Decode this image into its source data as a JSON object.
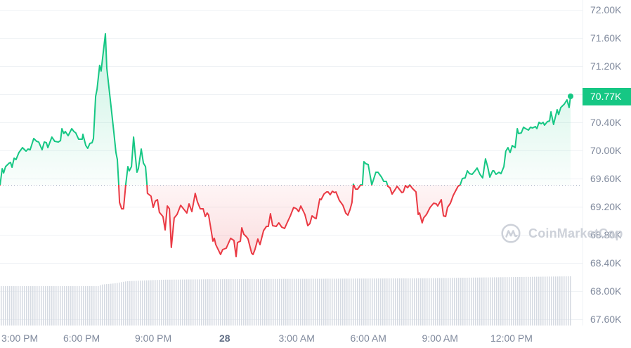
{
  "chart_data": {
    "type": "line",
    "title": "",
    "xlabel": "",
    "ylabel": "",
    "x_unit": "hours since 3:00 PM",
    "y_unit": "K",
    "ylim": [
      67.6,
      72.0
    ],
    "grid": {
      "min": 67.6,
      "max": 72.0,
      "step": 0.4
    },
    "baseline": {
      "value": 69.51,
      "style": "dotted"
    },
    "current_price": {
      "value": 70.77,
      "label": "70.77K"
    },
    "colors": {
      "up": "#16c784",
      "down": "#ea3943",
      "grid": "#eff2f5",
      "baseline": "#a6b0c3",
      "volume": "#d5dae2",
      "axis_text": "#808a9d"
    },
    "x_ticks": [
      {
        "t": 0,
        "label": "3:00 PM"
      },
      {
        "t": 3,
        "label": "6:00 PM"
      },
      {
        "t": 6,
        "label": "9:00 PM"
      },
      {
        "t": 9,
        "label": "28",
        "emphasis": true
      },
      {
        "t": 12,
        "label": "3:00 AM"
      },
      {
        "t": 15,
        "label": "6:00 AM"
      },
      {
        "t": 18,
        "label": "9:00 AM"
      },
      {
        "t": 21,
        "label": "12:00 PM"
      }
    ],
    "y_ticks": [
      {
        "value": 72.0,
        "label": "72.00K"
      },
      {
        "value": 71.6,
        "label": "71.60K"
      },
      {
        "value": 71.2,
        "label": "71.20K"
      },
      {
        "value": 70.4,
        "label": "70.40K"
      },
      {
        "value": 70.0,
        "label": "70.00K"
      },
      {
        "value": 69.6,
        "label": "69.60K"
      },
      {
        "value": 69.2,
        "label": "69.20K"
      },
      {
        "value": 68.8,
        "label": "68.80K"
      },
      {
        "value": 68.4,
        "label": "68.40K"
      },
      {
        "value": 68.0,
        "label": "68.00K"
      },
      {
        "value": 67.6,
        "label": "67.60K"
      }
    ],
    "legend": null,
    "series": [
      {
        "name": "Price",
        "points": [
          [
            -0.41,
            69.51
          ],
          [
            -0.32,
            69.74
          ],
          [
            -0.26,
            69.68
          ],
          [
            -0.18,
            69.77
          ],
          [
            -0.03,
            69.82
          ],
          [
            0.03,
            69.83
          ],
          [
            0.09,
            69.76
          ],
          [
            0.18,
            69.89
          ],
          [
            0.26,
            69.87
          ],
          [
            0.38,
            69.97
          ],
          [
            0.53,
            70.04
          ],
          [
            0.68,
            69.99
          ],
          [
            0.76,
            70.02
          ],
          [
            0.85,
            70.01
          ],
          [
            1.0,
            70.17
          ],
          [
            1.12,
            70.13
          ],
          [
            1.21,
            70.12
          ],
          [
            1.35,
            70.01
          ],
          [
            1.44,
            70.12
          ],
          [
            1.53,
            70.11
          ],
          [
            1.59,
            70.04
          ],
          [
            1.76,
            70.19
          ],
          [
            1.88,
            70.13
          ],
          [
            2.03,
            70.12
          ],
          [
            2.12,
            70.14
          ],
          [
            2.18,
            70.31
          ],
          [
            2.26,
            70.24
          ],
          [
            2.32,
            70.27
          ],
          [
            2.44,
            70.21
          ],
          [
            2.59,
            70.31
          ],
          [
            2.68,
            70.27
          ],
          [
            2.76,
            70.25
          ],
          [
            2.88,
            70.16
          ],
          [
            2.97,
            70.16
          ],
          [
            3.03,
            70.16
          ],
          [
            3.06,
            70.23
          ],
          [
            3.18,
            70.07
          ],
          [
            3.26,
            70.03
          ],
          [
            3.35,
            70.1
          ],
          [
            3.44,
            70.11
          ],
          [
            3.5,
            70.17
          ],
          [
            3.59,
            70.77
          ],
          [
            3.65,
            70.87
          ],
          [
            3.76,
            71.21
          ],
          [
            3.82,
            71.13
          ],
          [
            4.0,
            71.66
          ],
          [
            4.06,
            71.17
          ],
          [
            4.21,
            70.71
          ],
          [
            4.35,
            70.27
          ],
          [
            4.44,
            69.97
          ],
          [
            4.5,
            69.87
          ],
          [
            4.56,
            69.51
          ],
          [
            4.59,
            69.26
          ],
          [
            4.68,
            69.17
          ],
          [
            4.76,
            69.17
          ],
          [
            4.85,
            69.51
          ],
          [
            4.94,
            69.77
          ],
          [
            5.0,
            69.71
          ],
          [
            5.09,
            69.77
          ],
          [
            5.18,
            70.19
          ],
          [
            5.32,
            69.69
          ],
          [
            5.38,
            69.74
          ],
          [
            5.5,
            70.02
          ],
          [
            5.59,
            69.82
          ],
          [
            5.68,
            69.77
          ],
          [
            5.74,
            69.51
          ],
          [
            5.76,
            69.39
          ],
          [
            5.91,
            69.35
          ],
          [
            6.0,
            69.19
          ],
          [
            6.09,
            69.28
          ],
          [
            6.18,
            69.3
          ],
          [
            6.26,
            69.12
          ],
          [
            6.41,
            69.06
          ],
          [
            6.5,
            68.87
          ],
          [
            6.59,
            69.21
          ],
          [
            6.68,
            69.17
          ],
          [
            6.76,
            68.62
          ],
          [
            6.88,
            69.04
          ],
          [
            7.0,
            69.09
          ],
          [
            7.15,
            69.22
          ],
          [
            7.29,
            69.16
          ],
          [
            7.41,
            69.11
          ],
          [
            7.5,
            69.24
          ],
          [
            7.62,
            69.13
          ],
          [
            7.76,
            69.39
          ],
          [
            7.85,
            69.27
          ],
          [
            7.97,
            69.17
          ],
          [
            8.09,
            69.17
          ],
          [
            8.18,
            69.06
          ],
          [
            8.26,
            69.11
          ],
          [
            8.32,
            69.08
          ],
          [
            8.5,
            68.71
          ],
          [
            8.56,
            68.75
          ],
          [
            8.62,
            68.66
          ],
          [
            8.82,
            68.52
          ],
          [
            8.91,
            68.59
          ],
          [
            9.06,
            68.61
          ],
          [
            9.24,
            68.75
          ],
          [
            9.38,
            68.72
          ],
          [
            9.47,
            68.49
          ],
          [
            9.53,
            68.69
          ],
          [
            9.65,
            68.71
          ],
          [
            9.71,
            68.9
          ],
          [
            9.79,
            68.81
          ],
          [
            9.91,
            68.77
          ],
          [
            9.97,
            68.74
          ],
          [
            10.12,
            68.54
          ],
          [
            10.18,
            68.52
          ],
          [
            10.26,
            68.59
          ],
          [
            10.38,
            68.74
          ],
          [
            10.47,
            68.66
          ],
          [
            10.62,
            68.86
          ],
          [
            10.74,
            68.92
          ],
          [
            10.82,
            68.92
          ],
          [
            10.91,
            69.1
          ],
          [
            11.0,
            68.93
          ],
          [
            11.15,
            68.92
          ],
          [
            11.26,
            68.97
          ],
          [
            11.38,
            68.91
          ],
          [
            11.5,
            68.89
          ],
          [
            11.59,
            68.96
          ],
          [
            11.74,
            69.07
          ],
          [
            11.88,
            69.19
          ],
          [
            12.0,
            69.17
          ],
          [
            12.09,
            69.13
          ],
          [
            12.18,
            69.21
          ],
          [
            12.35,
            69.09
          ],
          [
            12.47,
            68.93
          ],
          [
            12.56,
            68.96
          ],
          [
            12.65,
            69.07
          ],
          [
            12.76,
            69.04
          ],
          [
            12.82,
            69.03
          ],
          [
            12.97,
            69.31
          ],
          [
            13.03,
            69.3
          ],
          [
            13.15,
            69.38
          ],
          [
            13.26,
            69.41
          ],
          [
            13.32,
            69.41
          ],
          [
            13.41,
            69.37
          ],
          [
            13.5,
            69.42
          ],
          [
            13.59,
            69.4
          ],
          [
            13.65,
            69.41
          ],
          [
            13.79,
            69.29
          ],
          [
            13.94,
            69.22
          ],
          [
            14.06,
            69.11
          ],
          [
            14.15,
            69.08
          ],
          [
            14.24,
            69.16
          ],
          [
            14.32,
            69.26
          ],
          [
            14.38,
            69.52
          ],
          [
            14.47,
            69.45
          ],
          [
            14.56,
            69.45
          ],
          [
            14.68,
            69.51
          ],
          [
            14.76,
            69.51
          ],
          [
            14.82,
            69.84
          ],
          [
            14.91,
            69.81
          ],
          [
            15.0,
            69.8
          ],
          [
            15.15,
            69.51
          ],
          [
            15.32,
            69.69
          ],
          [
            15.41,
            69.69
          ],
          [
            15.56,
            69.62
          ],
          [
            15.65,
            69.56
          ],
          [
            15.76,
            69.56
          ],
          [
            15.82,
            69.49
          ],
          [
            15.91,
            69.47
          ],
          [
            16.0,
            69.38
          ],
          [
            16.12,
            69.44
          ],
          [
            16.21,
            69.49
          ],
          [
            16.32,
            69.44
          ],
          [
            16.41,
            69.4
          ],
          [
            16.47,
            69.41
          ],
          [
            16.56,
            69.5
          ],
          [
            16.65,
            69.47
          ],
          [
            16.74,
            69.51
          ],
          [
            16.85,
            69.46
          ],
          [
            17.0,
            69.41
          ],
          [
            17.09,
            69.09
          ],
          [
            17.15,
            69.11
          ],
          [
            17.26,
            68.97
          ],
          [
            17.32,
            69.04
          ],
          [
            17.44,
            69.09
          ],
          [
            17.59,
            69.19
          ],
          [
            17.74,
            69.25
          ],
          [
            17.85,
            69.24
          ],
          [
            17.91,
            69.21
          ],
          [
            18.06,
            69.3
          ],
          [
            18.15,
            69.07
          ],
          [
            18.24,
            69.06
          ],
          [
            18.32,
            69.19
          ],
          [
            18.44,
            69.25
          ],
          [
            18.56,
            69.36
          ],
          [
            18.76,
            69.49
          ],
          [
            18.85,
            69.51
          ],
          [
            18.94,
            69.6
          ],
          [
            19.06,
            69.61
          ],
          [
            19.15,
            69.71
          ],
          [
            19.24,
            69.67
          ],
          [
            19.35,
            69.66
          ],
          [
            19.47,
            69.71
          ],
          [
            19.56,
            69.75
          ],
          [
            19.68,
            69.66
          ],
          [
            19.79,
            69.61
          ],
          [
            19.91,
            69.88
          ],
          [
            20.0,
            69.77
          ],
          [
            20.09,
            69.62
          ],
          [
            20.21,
            69.71
          ],
          [
            20.26,
            69.71
          ],
          [
            20.35,
            69.66
          ],
          [
            20.47,
            69.69
          ],
          [
            20.56,
            69.67
          ],
          [
            20.68,
            69.77
          ],
          [
            20.76,
            69.99
          ],
          [
            20.85,
            70.04
          ],
          [
            20.94,
            69.97
          ],
          [
            21.03,
            70.07
          ],
          [
            21.15,
            70.04
          ],
          [
            21.24,
            70.31
          ],
          [
            21.29,
            70.24
          ],
          [
            21.41,
            70.25
          ],
          [
            21.5,
            70.33
          ],
          [
            21.59,
            70.31
          ],
          [
            21.71,
            70.29
          ],
          [
            21.79,
            70.33
          ],
          [
            21.88,
            70.32
          ],
          [
            22.0,
            70.34
          ],
          [
            22.06,
            70.31
          ],
          [
            22.15,
            70.4
          ],
          [
            22.24,
            70.38
          ],
          [
            22.32,
            70.4
          ],
          [
            22.38,
            70.36
          ],
          [
            22.5,
            70.41
          ],
          [
            22.59,
            70.42
          ],
          [
            22.65,
            70.55
          ],
          [
            22.76,
            70.37
          ],
          [
            22.91,
            70.58
          ],
          [
            22.97,
            70.51
          ],
          [
            23.06,
            70.61
          ],
          [
            23.21,
            70.66
          ],
          [
            23.32,
            70.72
          ],
          [
            23.41,
            70.61
          ],
          [
            23.47,
            70.77
          ]
        ]
      }
    ],
    "volume": {
      "name": "Volume",
      "relative": [
        [
          -0.41,
          0.8
        ],
        [
          3.71,
          0.8
        ],
        [
          3.8,
          0.83
        ],
        [
          4.44,
          0.86
        ],
        [
          4.62,
          0.88
        ],
        [
          4.88,
          0.9
        ],
        [
          6.35,
          0.93
        ],
        [
          8.41,
          0.94
        ],
        [
          17.24,
          0.96
        ],
        [
          23.47,
          1.0
        ]
      ]
    }
  },
  "watermark": {
    "text": "CoinMarketCap",
    "icon": "coinmarketcap-logo-icon"
  }
}
